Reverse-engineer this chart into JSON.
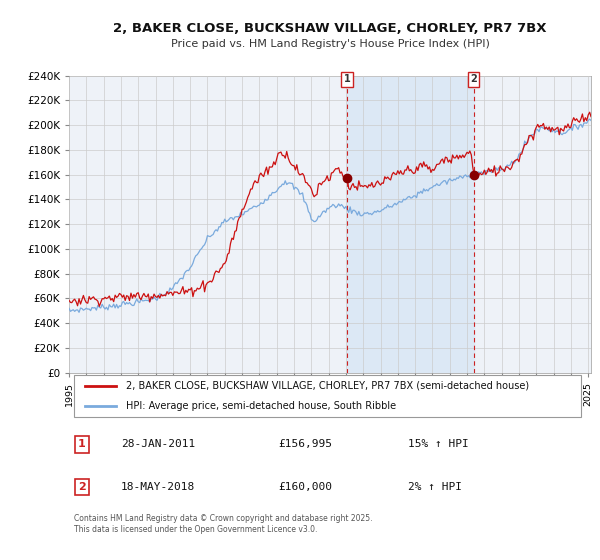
{
  "title_line1": "2, BAKER CLOSE, BUCKSHAW VILLAGE, CHORLEY, PR7 7BX",
  "title_line2": "Price paid vs. HM Land Registry's House Price Index (HPI)",
  "legend_line1": "2, BAKER CLOSE, BUCKSHAW VILLAGE, CHORLEY, PR7 7BX (semi-detached house)",
  "legend_line2": "HPI: Average price, semi-detached house, South Ribble",
  "footer": "Contains HM Land Registry data © Crown copyright and database right 2025.\nThis data is licensed under the Open Government Licence v3.0.",
  "sale1_label": "1",
  "sale1_date": "28-JAN-2011",
  "sale1_price": 156995,
  "sale1_price_str": "£156,995",
  "sale1_hpi": "15% ↑ HPI",
  "sale2_label": "2",
  "sale2_date": "18-MAY-2018",
  "sale2_price": 160000,
  "sale2_price_str": "£160,000",
  "sale2_hpi": "2% ↑ HPI",
  "ylim": [
    0,
    240000
  ],
  "yticks": [
    0,
    20000,
    40000,
    60000,
    80000,
    100000,
    120000,
    140000,
    160000,
    180000,
    200000,
    220000,
    240000
  ],
  "background_color": "#ffffff",
  "plot_bg_color": "#eef2f8",
  "shaded_region_color": "#dce8f5",
  "line1_color": "#cc1111",
  "line2_color": "#7aaadd",
  "vline_color": "#cc2222",
  "grid_color": "#cccccc",
  "marker_color": "#880000",
  "sale1_year": 2011,
  "sale1_month": 1,
  "sale2_year": 2018,
  "sale2_month": 5
}
